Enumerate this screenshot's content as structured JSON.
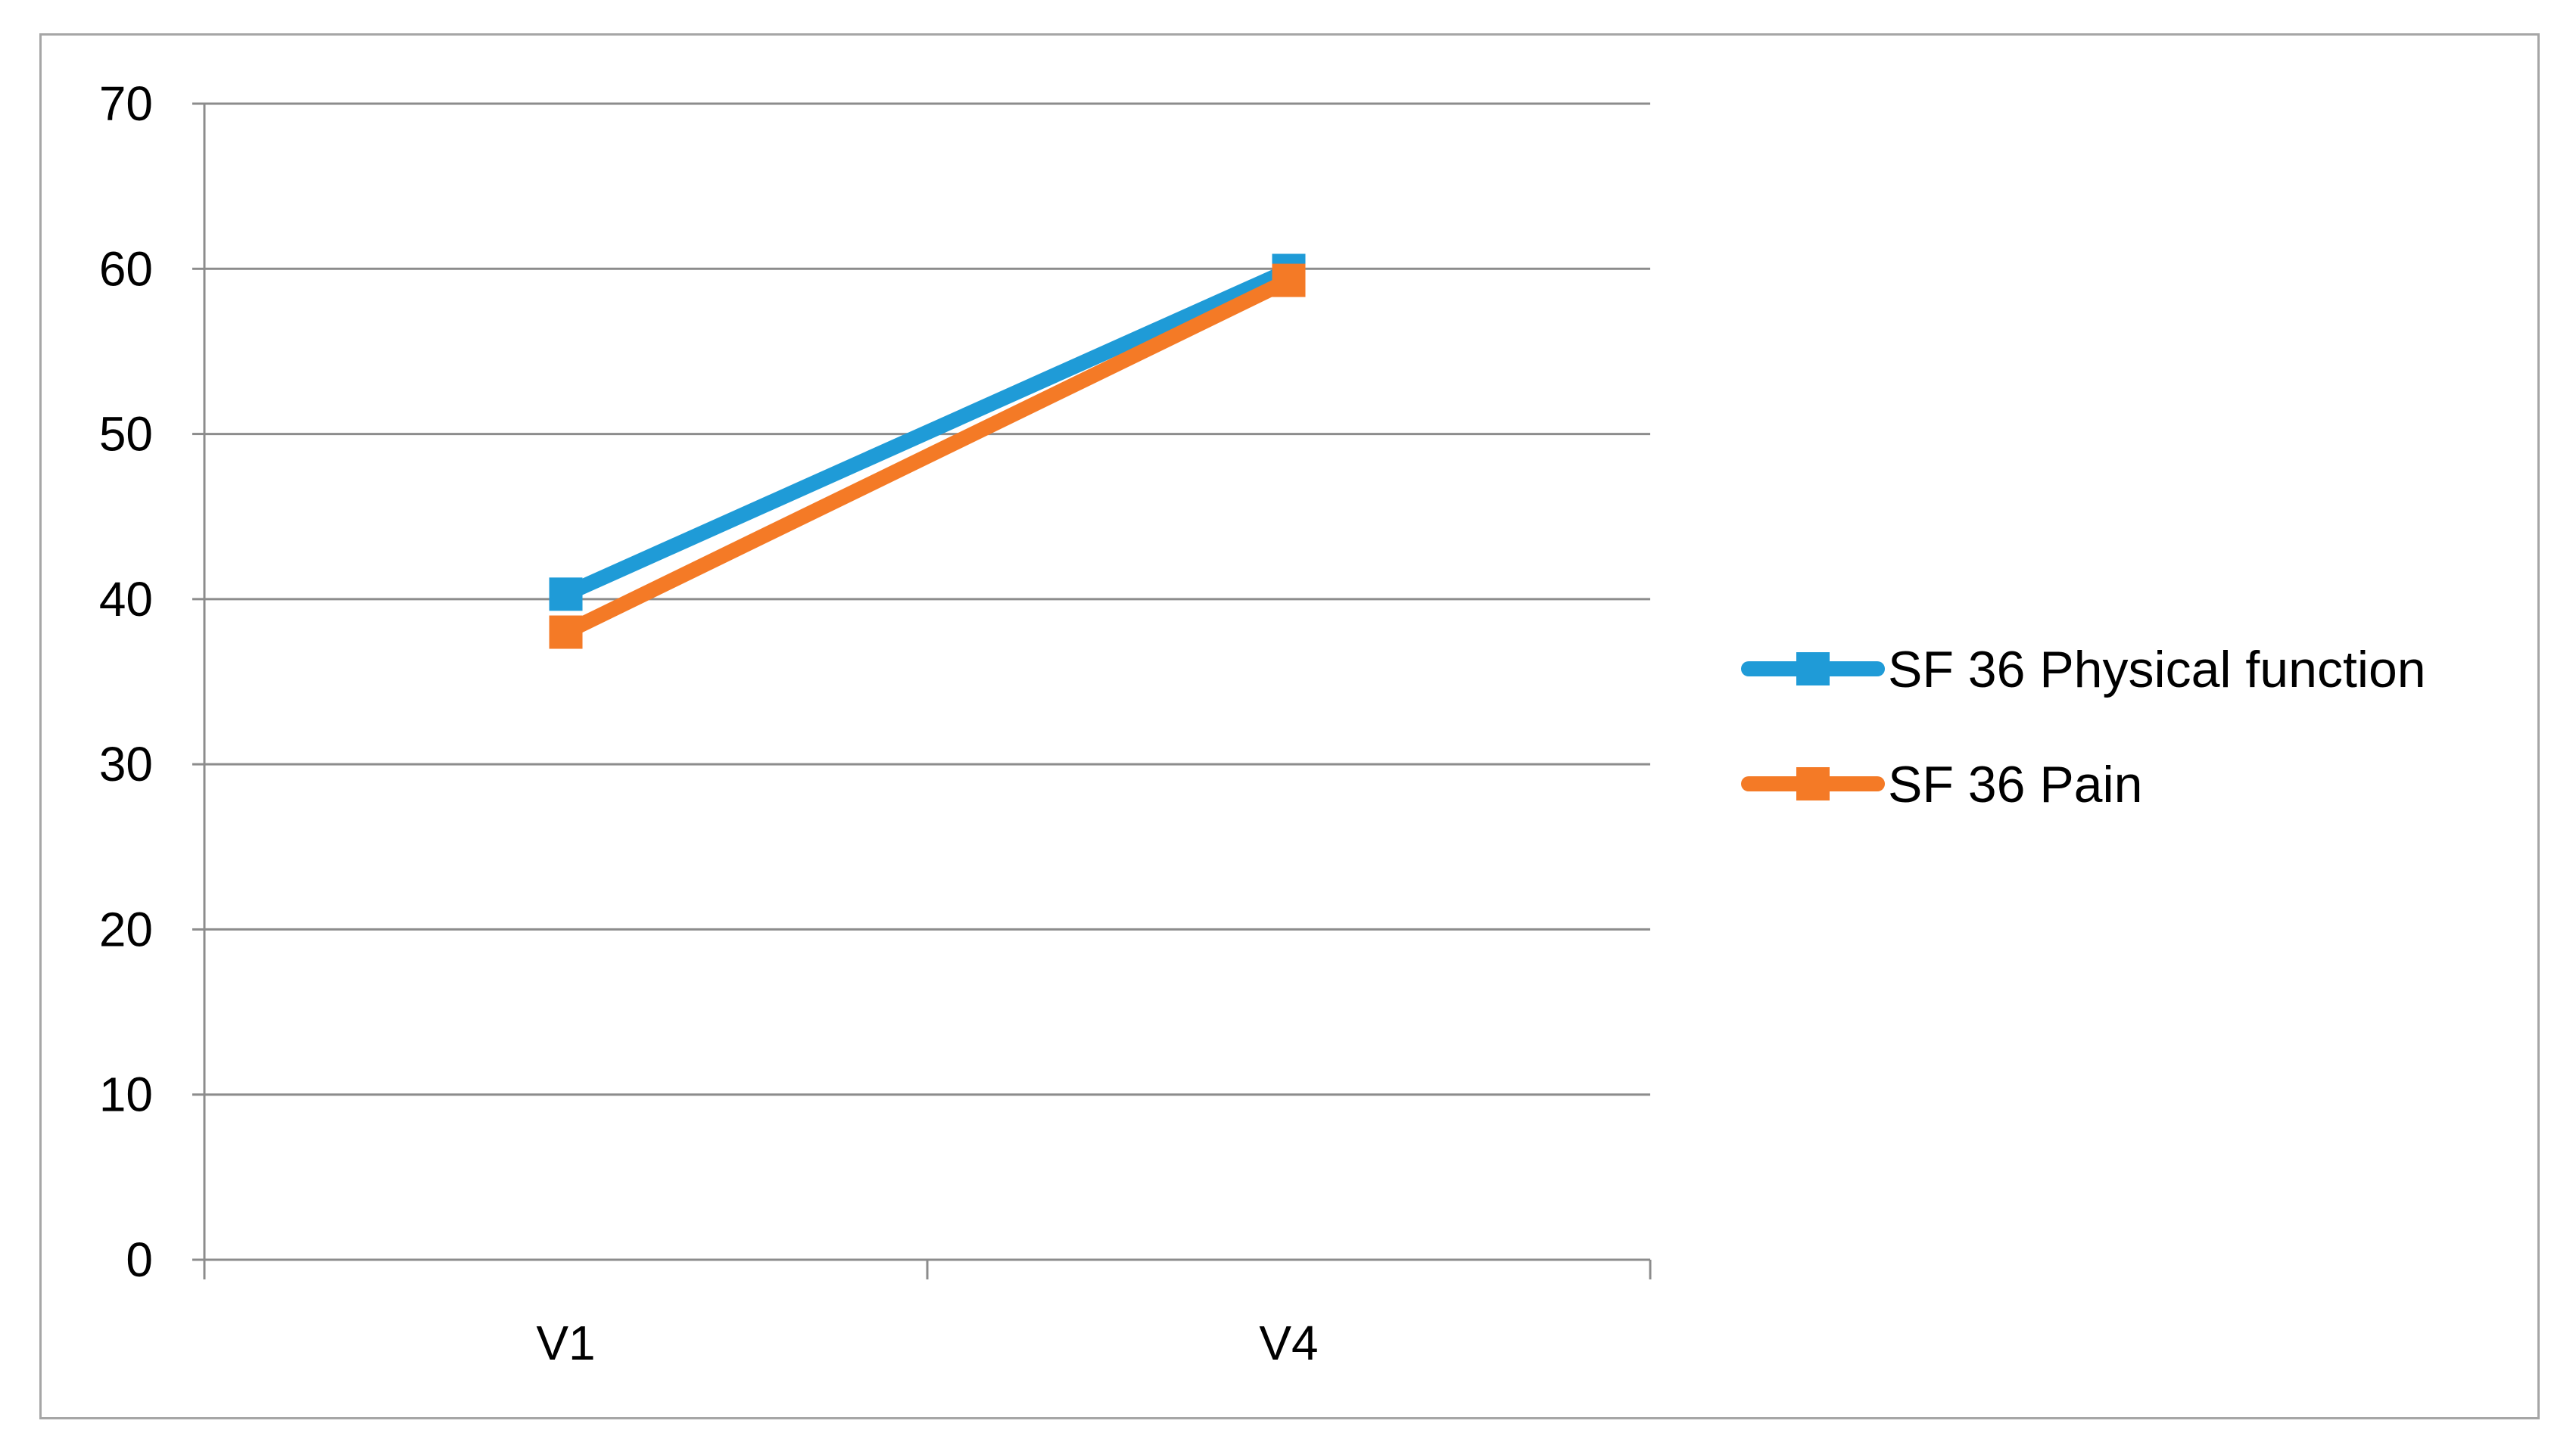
{
  "chart_data": {
    "type": "line",
    "title": "",
    "xlabel": "",
    "ylabel": "",
    "categories": [
      "V1",
      "V4"
    ],
    "ylim": [
      0,
      70
    ],
    "yticks": [
      0,
      10,
      20,
      30,
      40,
      50,
      60,
      70
    ],
    "grid": "horizontal",
    "legend_position": "right",
    "marker": "square",
    "series": [
      {
        "name": "SF 36 Physical function",
        "values": [
          40.3,
          59.9
        ],
        "color": "#1f9bd7"
      },
      {
        "name": "SF 36 Pain",
        "values": [
          38.0,
          59.3
        ],
        "color": "#f47a26"
      }
    ]
  }
}
